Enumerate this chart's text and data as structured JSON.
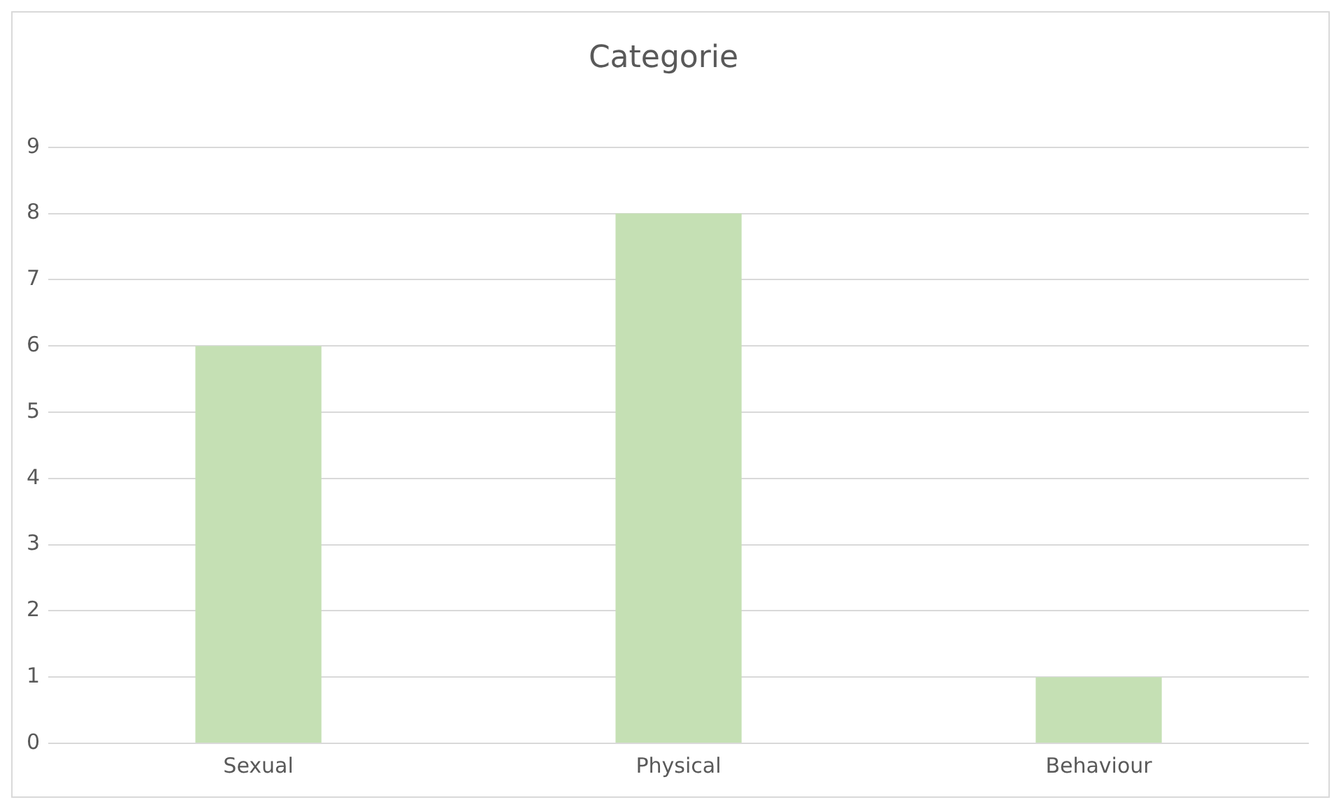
{
  "chart_data": {
    "type": "bar",
    "title": "Categorie",
    "categories": [
      "Sexual",
      "Physical",
      "Behaviour"
    ],
    "values": [
      6,
      8,
      1
    ],
    "color": "#c5e0b4",
    "ylim": [
      0,
      9
    ],
    "yticks": [
      0,
      1,
      2,
      3,
      4,
      5,
      6,
      7,
      8,
      9
    ],
    "grid": "y",
    "legend": false
  }
}
